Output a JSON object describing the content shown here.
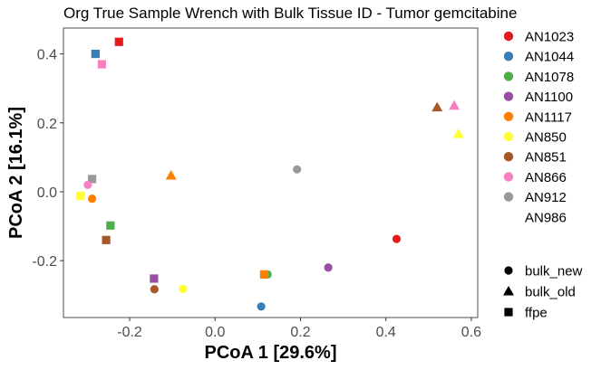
{
  "chart_data": {
    "type": "scatter",
    "title": "Org True Sample Wrench with Bulk Tissue ID - Tumor gemcitabine",
    "xlabel": "PCoA 1 [29.6%]",
    "ylabel": "PCoA 2 [16.1%]",
    "xlim": [
      -0.355,
      0.615
    ],
    "ylim": [
      -0.365,
      0.475
    ],
    "xticks": [
      -0.2,
      0.0,
      0.2,
      0.4,
      0.6
    ],
    "xtick_labels": [
      "-0.2",
      "0.0",
      "0.2",
      "0.4",
      "0.6"
    ],
    "yticks": [
      -0.2,
      0.0,
      0.2,
      0.4
    ],
    "ytick_labels": [
      "-0.2",
      "0.0",
      "0.2",
      "0.4"
    ],
    "grid": false,
    "legend_position": "right",
    "colors": {
      "AN1023": "#e41a1c",
      "AN1044": "#377eb8",
      "AN1078": "#4daf4a",
      "AN1100": "#984ea3",
      "AN1117": "#ff7f00",
      "AN850": "#ffff33",
      "AN851": "#a65628",
      "AN866": "#f781bf",
      "AN912": "#999999",
      "AN986": "#ffffff"
    },
    "color_legend": [
      "AN1023",
      "AN1044",
      "AN1078",
      "AN1100",
      "AN1117",
      "AN850",
      "AN851",
      "AN866",
      "AN912",
      "AN986"
    ],
    "shape_legend": [
      {
        "label": "bulk_new",
        "shape": "circle"
      },
      {
        "label": "bulk_old",
        "shape": "triangle"
      },
      {
        "label": "ffpe",
        "shape": "square"
      }
    ],
    "points": [
      {
        "group": "AN1023",
        "shape": "square",
        "x": -0.225,
        "y": 0.435
      },
      {
        "group": "AN1044",
        "shape": "square",
        "x": -0.28,
        "y": 0.4
      },
      {
        "group": "AN866",
        "shape": "square",
        "x": -0.265,
        "y": 0.37
      },
      {
        "group": "AN851",
        "shape": "triangle",
        "x": 0.52,
        "y": 0.245
      },
      {
        "group": "AN866",
        "shape": "triangle",
        "x": 0.56,
        "y": 0.25
      },
      {
        "group": "AN850",
        "shape": "triangle",
        "x": 0.57,
        "y": 0.168
      },
      {
        "group": "AN1117",
        "shape": "triangle",
        "x": -0.103,
        "y": 0.047
      },
      {
        "group": "AN912",
        "shape": "circle",
        "x": 0.192,
        "y": 0.065
      },
      {
        "group": "AN912",
        "shape": "square",
        "x": -0.288,
        "y": 0.037
      },
      {
        "group": "AN866",
        "shape": "circle",
        "x": -0.298,
        "y": 0.02
      },
      {
        "group": "AN850",
        "shape": "square",
        "x": -0.315,
        "y": -0.012
      },
      {
        "group": "AN1117",
        "shape": "circle",
        "x": -0.288,
        "y": -0.02
      },
      {
        "group": "AN1078",
        "shape": "square",
        "x": -0.245,
        "y": -0.098
      },
      {
        "group": "AN851",
        "shape": "square",
        "x": -0.255,
        "y": -0.14
      },
      {
        "group": "AN1023",
        "shape": "circle",
        "x": 0.425,
        "y": -0.137
      },
      {
        "group": "AN1100",
        "shape": "circle",
        "x": 0.265,
        "y": -0.22
      },
      {
        "group": "AN1078",
        "shape": "circle",
        "x": 0.123,
        "y": -0.24
      },
      {
        "group": "AN1117",
        "shape": "square",
        "x": 0.115,
        "y": -0.24
      },
      {
        "group": "AN1100",
        "shape": "square",
        "x": -0.143,
        "y": -0.252
      },
      {
        "group": "AN851",
        "shape": "circle",
        "x": -0.142,
        "y": -0.283
      },
      {
        "group": "AN850",
        "shape": "circle",
        "x": -0.075,
        "y": -0.282
      },
      {
        "group": "AN1044",
        "shape": "circle",
        "x": 0.108,
        "y": -0.333
      }
    ]
  }
}
